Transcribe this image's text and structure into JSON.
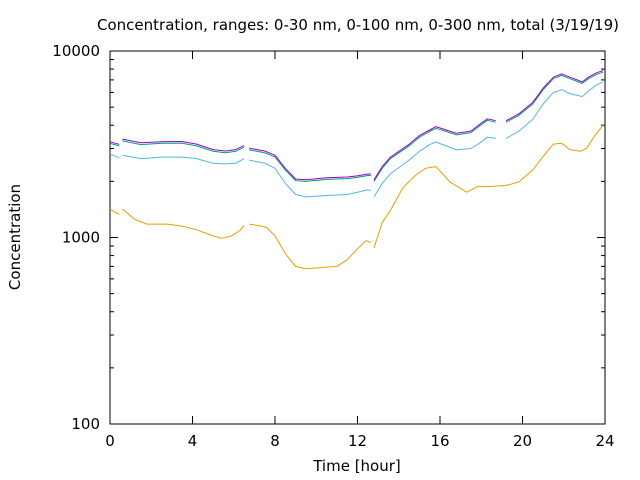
{
  "chart_data": {
    "type": "line",
    "title": "Concentration, ranges: 0-30 nm, 0-100 nm, 0-300 nm, total (3/19/19)",
    "xlabel": "Time [hour]",
    "ylabel": "Concentration",
    "xlim": [
      0,
      24
    ],
    "ylim": [
      100,
      10000
    ],
    "yscale": "log",
    "xticks": [
      "0",
      "4",
      "8",
      "12",
      "16",
      "20",
      "24"
    ],
    "yticks": [
      "100",
      "1000",
      "10000"
    ],
    "grid": false,
    "legend": "none",
    "series": [
      {
        "color": "#e69f00",
        "points": [
          [
            0,
            1420
          ],
          [
            0.45,
            1330
          ],
          [
            0.6,
            1420
          ],
          [
            1.2,
            1250
          ],
          [
            1.8,
            1180
          ],
          [
            2.8,
            1180
          ],
          [
            3.5,
            1150
          ],
          [
            4.2,
            1100
          ],
          [
            5.0,
            1020
          ],
          [
            5.4,
            990
          ],
          [
            5.9,
            1020
          ],
          [
            6.3,
            1090
          ],
          [
            6.5,
            1160
          ],
          [
            6.75,
            1180
          ],
          [
            7.2,
            1160
          ],
          [
            7.6,
            1130
          ],
          [
            8.0,
            1020
          ],
          [
            8.5,
            820
          ],
          [
            9.0,
            700
          ],
          [
            9.5,
            680
          ],
          [
            10.2,
            690
          ],
          [
            11.0,
            700
          ],
          [
            11.5,
            760
          ],
          [
            12.0,
            870
          ],
          [
            12.4,
            960
          ],
          [
            12.65,
            940
          ],
          [
            12.8,
            880
          ],
          [
            13.2,
            1200
          ],
          [
            13.6,
            1400
          ],
          [
            14.2,
            1850
          ],
          [
            14.8,
            2150
          ],
          [
            15.3,
            2350
          ],
          [
            15.8,
            2400
          ],
          [
            16.5,
            1980
          ],
          [
            17.3,
            1750
          ],
          [
            17.8,
            1870
          ],
          [
            18.5,
            1880
          ],
          [
            19.2,
            1900
          ],
          [
            19.8,
            1980
          ],
          [
            20.5,
            2300
          ],
          [
            21.0,
            2720
          ],
          [
            21.5,
            3170
          ],
          [
            21.9,
            3200
          ],
          [
            22.3,
            2960
          ],
          [
            22.8,
            2900
          ],
          [
            23.1,
            3000
          ],
          [
            23.5,
            3500
          ],
          [
            23.9,
            4000
          ]
        ]
      },
      {
        "color": "#56b4e9",
        "points": [
          [
            0,
            2800
          ],
          [
            0.45,
            2680
          ],
          [
            0.6,
            2760
          ],
          [
            1.5,
            2650
          ],
          [
            2.5,
            2700
          ],
          [
            3.5,
            2700
          ],
          [
            4.2,
            2650
          ],
          [
            5.0,
            2500
          ],
          [
            5.6,
            2480
          ],
          [
            6.1,
            2500
          ],
          [
            6.5,
            2650
          ],
          [
            6.75,
            2600
          ],
          [
            7.5,
            2500
          ],
          [
            8.0,
            2350
          ],
          [
            8.5,
            1950
          ],
          [
            9.0,
            1700
          ],
          [
            9.5,
            1650
          ],
          [
            10.5,
            1680
          ],
          [
            11.5,
            1700
          ],
          [
            12.0,
            1750
          ],
          [
            12.5,
            1800
          ],
          [
            12.65,
            1780
          ],
          [
            12.8,
            1650
          ],
          [
            13.2,
            1950
          ],
          [
            13.6,
            2200
          ],
          [
            14.5,
            2600
          ],
          [
            15.0,
            2900
          ],
          [
            15.5,
            3150
          ],
          [
            15.8,
            3250
          ],
          [
            16.3,
            3100
          ],
          [
            16.8,
            2950
          ],
          [
            17.5,
            3000
          ],
          [
            17.9,
            3200
          ],
          [
            18.3,
            3450
          ],
          [
            18.7,
            3400
          ],
          [
            19.2,
            3400
          ],
          [
            19.8,
            3700
          ],
          [
            20.5,
            4300
          ],
          [
            21.0,
            5200
          ],
          [
            21.5,
            6000
          ],
          [
            21.9,
            6200
          ],
          [
            22.3,
            5900
          ],
          [
            22.9,
            5700
          ],
          [
            23.2,
            6100
          ],
          [
            23.6,
            6600
          ],
          [
            23.9,
            6800
          ]
        ]
      },
      {
        "color": "#009e73",
        "points": [
          [
            0,
            3200
          ],
          [
            0.45,
            3100
          ],
          [
            0.6,
            3300
          ],
          [
            1.5,
            3150
          ],
          [
            2.5,
            3200
          ],
          [
            3.5,
            3200
          ],
          [
            4.2,
            3100
          ],
          [
            5.0,
            2900
          ],
          [
            5.6,
            2850
          ],
          [
            6.1,
            2900
          ],
          [
            6.5,
            3050
          ],
          [
            6.75,
            2950
          ],
          [
            7.5,
            2850
          ],
          [
            8.0,
            2700
          ],
          [
            8.5,
            2300
          ],
          [
            9.0,
            2020
          ],
          [
            9.5,
            2000
          ],
          [
            10.5,
            2050
          ],
          [
            11.5,
            2070
          ],
          [
            12.0,
            2100
          ],
          [
            12.5,
            2150
          ],
          [
            12.65,
            2150
          ],
          [
            12.8,
            2000
          ],
          [
            13.2,
            2350
          ],
          [
            13.6,
            2650
          ],
          [
            14.5,
            3100
          ],
          [
            15.0,
            3450
          ],
          [
            15.5,
            3700
          ],
          [
            15.8,
            3850
          ],
          [
            16.3,
            3700
          ],
          [
            16.8,
            3550
          ],
          [
            17.5,
            3650
          ],
          [
            17.9,
            3950
          ],
          [
            18.3,
            4250
          ],
          [
            18.7,
            4150
          ],
          [
            19.2,
            4150
          ],
          [
            19.8,
            4500
          ],
          [
            20.5,
            5200
          ],
          [
            21.0,
            6200
          ],
          [
            21.5,
            7100
          ],
          [
            21.9,
            7400
          ],
          [
            22.3,
            7100
          ],
          [
            22.9,
            6700
          ],
          [
            23.2,
            7100
          ],
          [
            23.6,
            7500
          ],
          [
            23.9,
            7700
          ]
        ]
      },
      {
        "color": "#9400d3",
        "points": [
          [
            0,
            3260
          ],
          [
            0.45,
            3160
          ],
          [
            0.6,
            3370
          ],
          [
            1.5,
            3220
          ],
          [
            2.5,
            3260
          ],
          [
            3.5,
            3270
          ],
          [
            4.2,
            3170
          ],
          [
            5.0,
            2960
          ],
          [
            5.6,
            2910
          ],
          [
            6.1,
            2960
          ],
          [
            6.5,
            3110
          ],
          [
            6.75,
            3010
          ],
          [
            7.5,
            2910
          ],
          [
            8.0,
            2760
          ],
          [
            8.5,
            2350
          ],
          [
            9.0,
            2060
          ],
          [
            9.5,
            2040
          ],
          [
            10.5,
            2090
          ],
          [
            11.5,
            2110
          ],
          [
            12.0,
            2140
          ],
          [
            12.5,
            2190
          ],
          [
            12.65,
            2190
          ],
          [
            12.8,
            2040
          ],
          [
            13.2,
            2400
          ],
          [
            13.6,
            2700
          ],
          [
            14.5,
            3160
          ],
          [
            15.0,
            3520
          ],
          [
            15.5,
            3770
          ],
          [
            15.8,
            3930
          ],
          [
            16.3,
            3770
          ],
          [
            16.8,
            3620
          ],
          [
            17.5,
            3720
          ],
          [
            17.9,
            4030
          ],
          [
            18.3,
            4330
          ],
          [
            18.7,
            4230
          ],
          [
            19.2,
            4230
          ],
          [
            19.8,
            4590
          ],
          [
            20.5,
            5300
          ],
          [
            21.0,
            6320
          ],
          [
            21.5,
            7240
          ],
          [
            21.9,
            7550
          ],
          [
            22.3,
            7240
          ],
          [
            22.9,
            6830
          ],
          [
            23.2,
            7240
          ],
          [
            23.6,
            7650
          ],
          [
            23.9,
            7850
          ]
        ]
      }
    ]
  }
}
